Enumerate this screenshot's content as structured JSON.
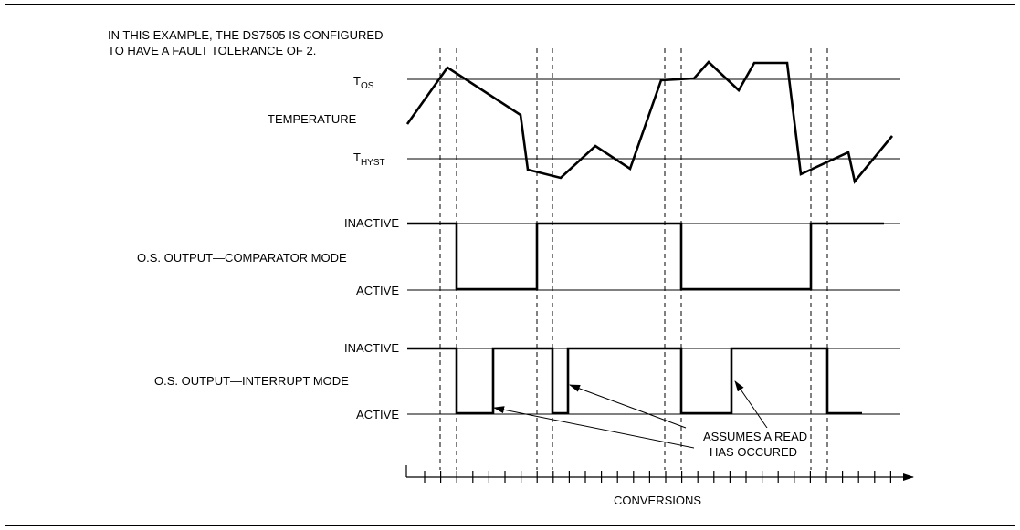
{
  "note": {
    "line1": "IN THIS EXAMPLE, THE DS7505 IS CONFIGURED",
    "line2": "TO HAVE A FAULT TOLERANCE OF 2."
  },
  "temperature": {
    "label": "TEMPERATURE",
    "tos_main": "T",
    "tos_sub": "OS",
    "thyst_main": "T",
    "thyst_sub": "HYST"
  },
  "comparator": {
    "label": "O.S. OUTPUT—COMPARATOR MODE",
    "inactive": "INACTIVE",
    "active": "ACTIVE"
  },
  "interrupt": {
    "label": "O.S. OUTPUT—INTERRUPT MODE",
    "inactive": "INACTIVE",
    "active": "ACTIVE"
  },
  "annotation": {
    "line1": "ASSUMES A READ",
    "line2": "HAS OCCURED"
  },
  "axis": {
    "label": "CONVERSIONS"
  }
}
